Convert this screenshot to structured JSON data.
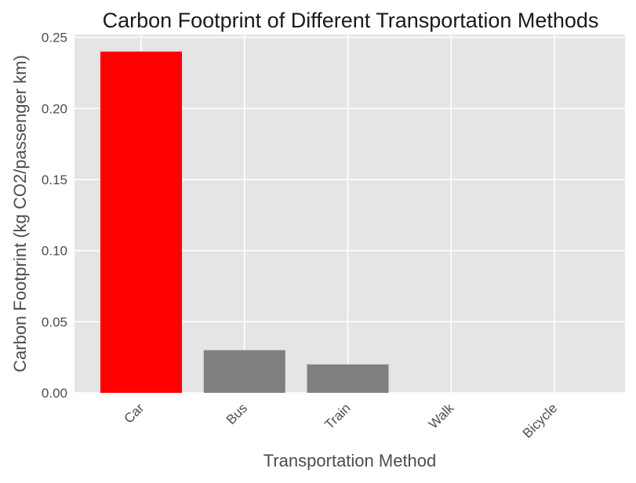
{
  "chart_data": {
    "type": "bar",
    "title": "Carbon Footprint of Different Transportation Methods",
    "xlabel": "Transportation Method",
    "ylabel": "Carbon Footprint (kg CO2/passenger km)",
    "categories": [
      "Car",
      "Bus",
      "Train",
      "Walk",
      "Bicycle"
    ],
    "values": [
      0.24,
      0.03,
      0.02,
      0.0,
      0.0
    ],
    "bar_colors": [
      "#ff0000",
      "#808080",
      "#808080",
      "#808080",
      "#808080"
    ],
    "ylim": [
      0,
      0.252
    ],
    "yticks": [
      "0.00",
      "0.05",
      "0.10",
      "0.15",
      "0.20",
      "0.25"
    ],
    "grid": true,
    "plot_background": "#e5e5e5",
    "grid_color": "#ffffff"
  }
}
